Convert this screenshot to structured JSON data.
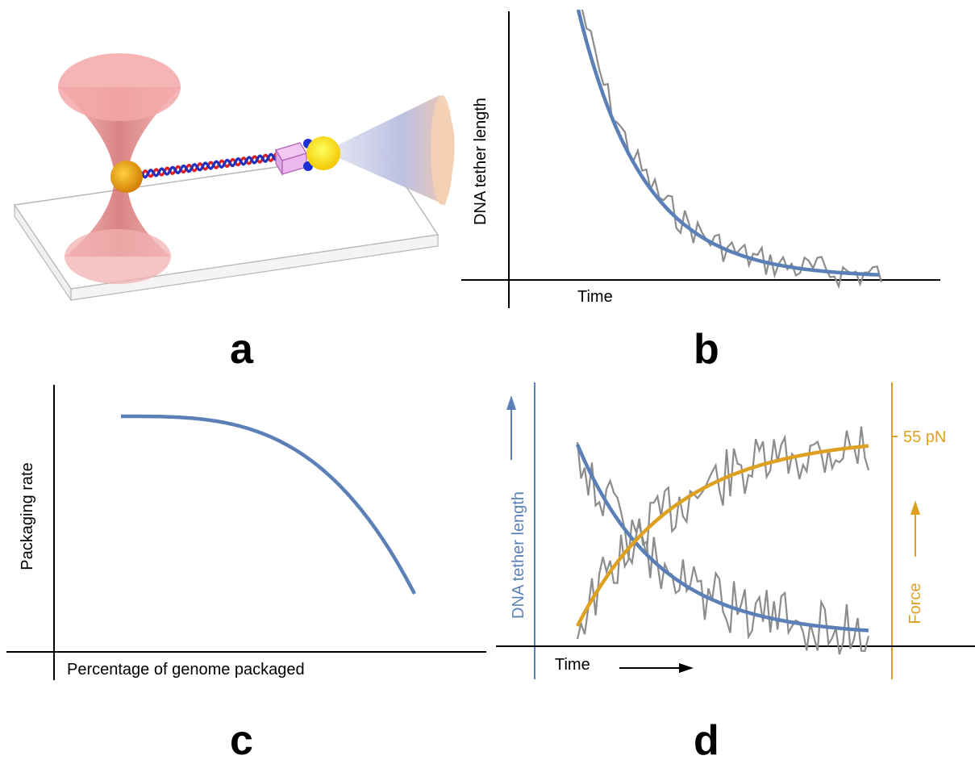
{
  "panels": {
    "a": {
      "letter": "a"
    },
    "b": {
      "letter": "b",
      "ylabel": "DNA tether length",
      "xlabel": "Time"
    },
    "c": {
      "letter": "c",
      "ylabel": "Packaging rate",
      "xlabel": "Percentage of genome packaged"
    },
    "d": {
      "letter": "d",
      "ylabel_left": "DNA tether length",
      "ylabel_right": "Force",
      "xlabel": "Time",
      "force_tick": "55 pN"
    }
  },
  "colors": {
    "fit_blue": "#5b80b8",
    "force_orange": "#dda021",
    "noisy_gray": "#8c8c8c",
    "trap_red": "#e8797a",
    "bead_yellow": "#ffee00",
    "dna_red": "#e02020",
    "dna_blue": "#2030c0"
  },
  "chart_data": [
    {
      "panel": "b",
      "type": "line",
      "xlabel": "Time",
      "ylabel": "DNA tether length",
      "series": [
        {
          "kind": "exponential decay fit"
        },
        {
          "kind": "noisy measurement"
        }
      ]
    },
    {
      "panel": "c",
      "type": "line",
      "xlabel": "Percentage of genome packaged",
      "ylabel": "Packaging rate",
      "series": [
        {
          "kind": "decreasing curve"
        }
      ]
    },
    {
      "panel": "d",
      "type": "line",
      "xlabel": "Time",
      "ylabel": "DNA tether length",
      "y2label": "Force",
      "y2_tick": "55 pN",
      "series": [
        {
          "kind": "tether length decay fit"
        },
        {
          "kind": "force rise fit"
        },
        {
          "kind": "noisy measurements"
        }
      ]
    }
  ]
}
